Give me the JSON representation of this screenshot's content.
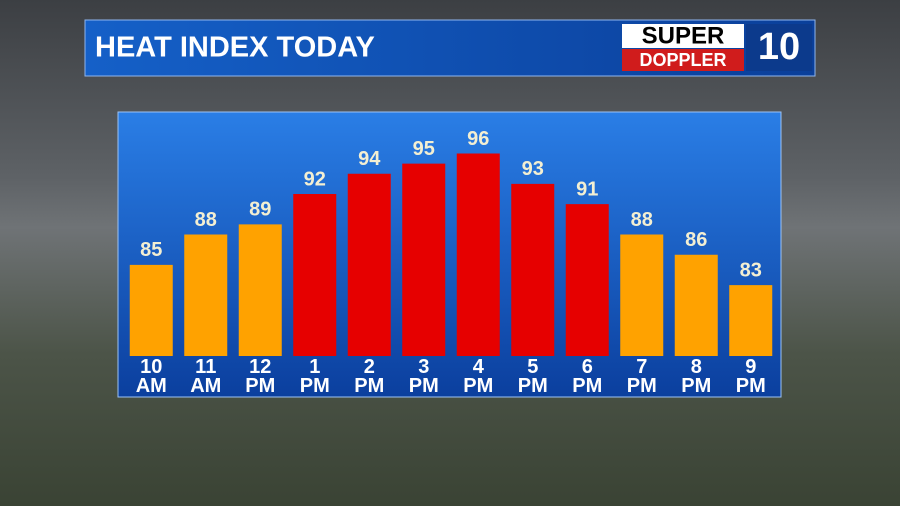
{
  "chart_data": {
    "type": "bar",
    "title": "HEAT INDEX TODAY",
    "categories": [
      "10\nAM",
      "11\nAM",
      "12\nPM",
      "1\nPM",
      "2\nPM",
      "3\nPM",
      "4\nPM",
      "5\nPM",
      "6\nPM",
      "7\nPM",
      "8\nPM",
      "9\nPM"
    ],
    "values": [
      85,
      88,
      89,
      92,
      94,
      95,
      96,
      93,
      91,
      88,
      86,
      83
    ],
    "colors": [
      "#ffa200",
      "#ffa200",
      "#ffa200",
      "#e60000",
      "#e60000",
      "#e60000",
      "#e60000",
      "#e60000",
      "#e60000",
      "#ffa200",
      "#ffa200",
      "#ffa200"
    ],
    "ylim": [
      76,
      100
    ]
  },
  "logo": {
    "line1": "SUPER",
    "line2": "DOPPLER",
    "number": "10"
  }
}
